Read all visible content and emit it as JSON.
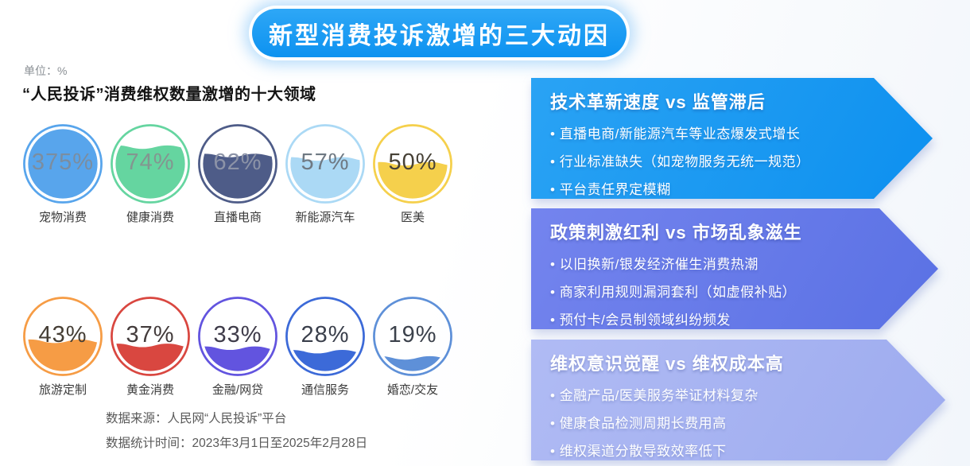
{
  "banner": {
    "title": "新型消费投诉激增的三大动因"
  },
  "unit_label": "单位：%",
  "chart": {
    "title": "“人民投诉”消费维权数量激增的十大领域",
    "items": [
      {
        "label": "宠物消费",
        "value": 375,
        "display": "375%",
        "color": "#58A5EC",
        "value_color": "#7b8da0"
      },
      {
        "label": "健康消费",
        "value": 74,
        "display": "74%",
        "color": "#65D5A0",
        "value_color": "#839690"
      },
      {
        "label": "直播电商",
        "value": 62,
        "display": "62%",
        "color": "#4E5C88",
        "value_color": "#8c93a7"
      },
      {
        "label": "新能源汽车",
        "value": 57,
        "display": "57%",
        "color": "#ABD9F5",
        "value_color": "#6f7983"
      },
      {
        "label": "医美",
        "value": 50,
        "display": "50%",
        "color": "#F5D04C",
        "value_color": "#474136"
      },
      {
        "label": "旅游定制",
        "value": 43,
        "display": "43%",
        "color": "#F69C45",
        "value_color": "#453e35"
      },
      {
        "label": "黄金消费",
        "value": 37,
        "display": "37%",
        "color": "#D94740",
        "value_color": "#433b3b"
      },
      {
        "label": "金融/网贷",
        "value": 33,
        "display": "33%",
        "color": "#6254DF",
        "value_color": "#3e3b49"
      },
      {
        "label": "通信服务",
        "value": 28,
        "display": "28%",
        "color": "#3C6AD8",
        "value_color": "#3a3f4b"
      },
      {
        "label": "婚恋/交友",
        "value": 19,
        "display": "19%",
        "color": "#5E90D8",
        "value_color": "#3b414b"
      }
    ],
    "source_line1": "数据来源：人民网“人民投诉”平台",
    "source_line2": "数据统计时间：2023年3月1日至2025年2月28日"
  },
  "chart_data": {
    "type": "bar",
    "variant": "liquid-fill circular gauges",
    "title": "“人民投诉”消费维权数量激增的十大领域",
    "unit": "%",
    "categories": [
      "宠物消费",
      "健康消费",
      "直播电商",
      "新能源汽车",
      "医美",
      "旅游定制",
      "黄金消费",
      "金融/网贷",
      "通信服务",
      "婚恋/交友"
    ],
    "values": [
      375,
      74,
      62,
      57,
      50,
      43,
      37,
      33,
      28,
      19
    ],
    "colors": [
      "#58A5EC",
      "#65D5A0",
      "#4E5C88",
      "#ABD9F5",
      "#F5D04C",
      "#F69C45",
      "#D94740",
      "#6254DF",
      "#3C6AD8",
      "#5E90D8"
    ],
    "source": "人民网“人民投诉”平台",
    "period": "2023年3月1日至2025年2月28日",
    "layout": "two rows of five gauges, fill level = percentage (capped at 100%)"
  },
  "factors": [
    {
      "title": "技术革新速度 vs 监管滞后",
      "color": "#189BF2",
      "bullets": [
        "直播电商/新能源汽车等业态爆发式增长",
        "行业标准缺失（如宠物服务无统一规范）",
        "平台责任界定模糊"
      ]
    },
    {
      "title": "政策刺激红利 vs 市场乱象滋生",
      "color": "#6577E9",
      "bullets": [
        "以旧换新/银发经济催生消费热潮",
        "商家利用规则漏洞套利（如虚假补贴）",
        "预付卡/会员制领域纠纷频发"
      ]
    },
    {
      "title": "维权意识觉醒 vs 维权成本高",
      "color": "#A9B4F1",
      "bullets": [
        "金融产品/医美服务举证材料复杂",
        "健康食品检测周期长费用高",
        "维权渠道分散导致效率低下"
      ]
    }
  ]
}
